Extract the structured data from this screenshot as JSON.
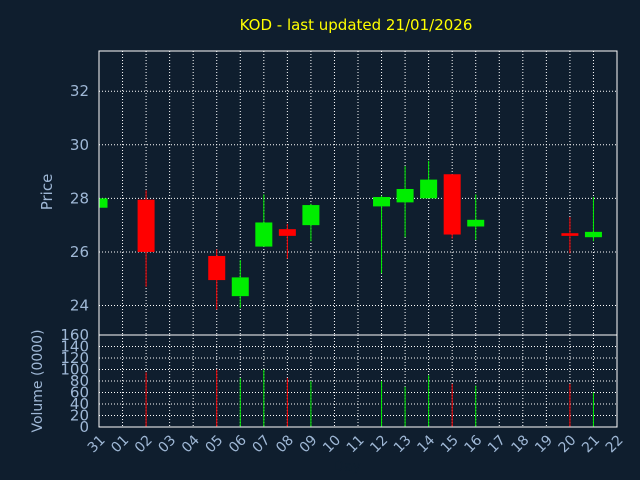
{
  "chart_data": {
    "type": "candlestick",
    "title": "KOD - last updated 21/01/2026",
    "xlabel": "Day",
    "x_ticks": [
      "31",
      "01",
      "02",
      "03",
      "04",
      "05",
      "06",
      "07",
      "08",
      "09",
      "10",
      "11",
      "12",
      "13",
      "14",
      "15",
      "16",
      "17",
      "18",
      "19",
      "20",
      "21",
      "22"
    ],
    "colors": {
      "background": "#0f1e2e",
      "up": "#00ee00",
      "down": "#ff0000",
      "grid": "#ffffff",
      "axis_text": "#9fb8d6",
      "title": "#ffff00"
    },
    "price_panel": {
      "ylabel": "Price",
      "ylim": [
        22.9,
        33.5
      ],
      "y_ticks": [
        24,
        26,
        28,
        30,
        32
      ]
    },
    "volume_panel": {
      "ylabel": "Volume (0000)",
      "ylim": [
        0,
        160
      ],
      "y_ticks": [
        0,
        20,
        40,
        60,
        80,
        100,
        120,
        140,
        160
      ]
    },
    "candles": [
      {
        "day": "31",
        "open": 27.65,
        "high": 28.05,
        "low": 27.65,
        "close": 28.0,
        "volume": 0
      },
      {
        "day": "02",
        "open": 27.95,
        "high": 28.3,
        "low": 24.7,
        "close": 26.0,
        "volume": 95
      },
      {
        "day": "05",
        "open": 25.85,
        "high": 26.1,
        "low": 23.85,
        "close": 24.95,
        "volume": 100
      },
      {
        "day": "06",
        "open": 24.35,
        "high": 25.7,
        "low": 23.9,
        "close": 25.05,
        "volume": 85
      },
      {
        "day": "07",
        "open": 26.2,
        "high": 28.15,
        "low": 26.2,
        "close": 27.1,
        "volume": 100
      },
      {
        "day": "08",
        "open": 26.85,
        "high": 27.05,
        "low": 25.75,
        "close": 26.6,
        "volume": 85
      },
      {
        "day": "09",
        "open": 27.0,
        "high": 27.8,
        "low": 26.4,
        "close": 27.75,
        "volume": 80
      },
      {
        "day": "12",
        "open": 27.7,
        "high": 28.1,
        "low": 25.2,
        "close": 28.05,
        "volume": 80
      },
      {
        "day": "13",
        "open": 27.85,
        "high": 29.2,
        "low": 26.55,
        "close": 28.35,
        "volume": 70
      },
      {
        "day": "14",
        "open": 28.0,
        "high": 29.4,
        "low": 28.0,
        "close": 28.7,
        "volume": 90
      },
      {
        "day": "15",
        "open": 28.9,
        "high": 28.9,
        "low": 26.5,
        "close": 26.65,
        "volume": 75
      },
      {
        "day": "16",
        "open": 26.95,
        "high": 28.15,
        "low": 26.45,
        "close": 27.2,
        "volume": 72
      },
      {
        "day": "20",
        "open": 26.7,
        "high": 27.3,
        "low": 25.95,
        "close": 26.6,
        "volume": 75
      },
      {
        "day": "21",
        "open": 26.55,
        "high": 28.05,
        "low": 26.4,
        "close": 26.75,
        "volume": 60
      }
    ]
  }
}
